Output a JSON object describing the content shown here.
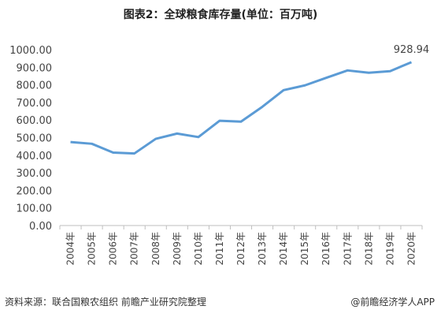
{
  "title": "图表2：全球粮食库存量(单位：百万吨)",
  "source": {
    "left": "资料来源：联合国粮农组织 前瞻产业研究院整理",
    "right": "@前瞻经济学人APP"
  },
  "chart_data": {
    "type": "line",
    "title": "图表2：全球粮食库存量(单位：百万吨)",
    "xlabel": "",
    "ylabel": "",
    "categories": [
      "2004年",
      "2005年",
      "2006年",
      "2007年",
      "2008年",
      "2009年",
      "2010年",
      "2011年",
      "2012年",
      "2013年",
      "2014年",
      "2015年",
      "2016年",
      "2017年",
      "2018年",
      "2019年",
      "2020年"
    ],
    "series": [
      {
        "values": [
          475,
          465,
          415,
          410,
          493,
          523,
          503,
          596,
          591,
          675,
          770,
          797,
          840,
          882,
          869,
          878,
          928.94
        ]
      }
    ],
    "ylim": [
      0,
      1000
    ],
    "yticks": [
      "0.00",
      "100.00",
      "200.00",
      "300.00",
      "400.00",
      "500.00",
      "600.00",
      "700.00",
      "800.00",
      "900.00",
      "1000.00"
    ],
    "data_labels": [
      {
        "index": 16,
        "text": "928.94"
      }
    ],
    "line_color": "#5b9bd5",
    "grid": false,
    "legend": "none"
  }
}
